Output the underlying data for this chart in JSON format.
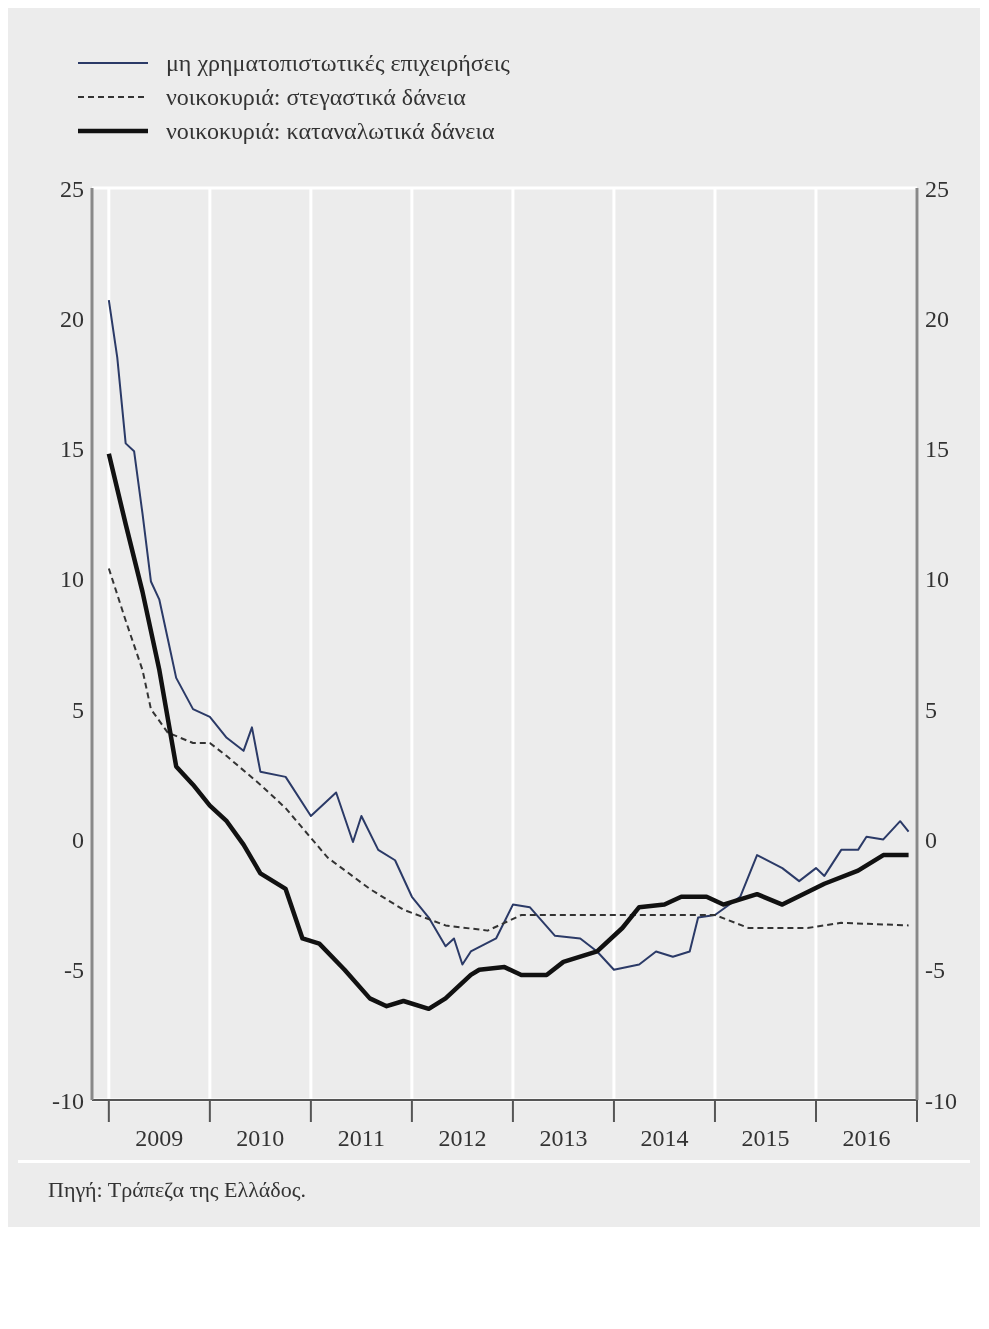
{
  "chart_data": {
    "type": "line",
    "legend": "top left",
    "grid": true,
    "series": [
      {
        "name": "μη χρηματοπιστωτικές επιχειρήσεις",
        "color": "#2b3a67",
        "line_style": "solid",
        "x": [
          "2009-01",
          "2009-02",
          "2009-03",
          "2009-04",
          "2009-05",
          "2009-06",
          "2009-07",
          "2009-08",
          "2009-09",
          "2009-11",
          "2010-01",
          "2010-03",
          "2010-05",
          "2010-06",
          "2010-07",
          "2010-10",
          "2011-01",
          "2011-04",
          "2011-06",
          "2011-07",
          "2011-09",
          "2011-11",
          "2012-01",
          "2012-03",
          "2012-05",
          "2012-06",
          "2012-07",
          "2012-08",
          "2012-11",
          "2013-01",
          "2013-03",
          "2013-06",
          "2013-09",
          "2013-11",
          "2014-01",
          "2014-04",
          "2014-06",
          "2014-08",
          "2014-10",
          "2014-11",
          "2015-01",
          "2015-04",
          "2015-06",
          "2015-09",
          "2015-11",
          "2016-01",
          "2016-02",
          "2016-04",
          "2016-06",
          "2016-07",
          "2016-09",
          "2016-11",
          "2016-12"
        ],
        "values": [
          20.7,
          18.5,
          15.2,
          14.9,
          12.5,
          9.9,
          9.2,
          7.7,
          6.2,
          5.0,
          4.7,
          3.9,
          3.4,
          4.3,
          2.6,
          2.4,
          0.9,
          1.8,
          -0.1,
          0.9,
          -0.4,
          -0.8,
          -2.2,
          -3.0,
          -4.1,
          -3.8,
          -4.8,
          -4.3,
          -3.8,
          -2.5,
          -2.6,
          -3.7,
          -3.8,
          -4.3,
          -5.0,
          -4.8,
          -4.3,
          -4.5,
          -4.3,
          -3.0,
          -2.9,
          -2.2,
          -0.6,
          -1.1,
          -1.6,
          -1.1,
          -1.4,
          -0.4,
          -0.4,
          0.1,
          0.0,
          0.7,
          0.3
        ]
      },
      {
        "name": "νοικοκυριά: στεγαστικά δάνεια",
        "color": "#333333",
        "line_style": "dashed",
        "x": [
          "2009-01",
          "2009-03",
          "2009-05",
          "2009-06",
          "2009-08",
          "2009-11",
          "2010-01",
          "2010-03",
          "2010-07",
          "2010-10",
          "2011-03",
          "2011-08",
          "2011-12",
          "2012-05",
          "2012-10",
          "2013-02",
          "2013-09",
          "2014-05",
          "2015-01",
          "2015-05",
          "2015-12",
          "2016-04",
          "2016-12"
        ],
        "values": [
          10.4,
          8.4,
          6.5,
          5.0,
          4.1,
          3.7,
          3.7,
          3.2,
          2.1,
          1.2,
          -0.7,
          -1.9,
          -2.7,
          -3.3,
          -3.5,
          -2.9,
          -2.9,
          -2.9,
          -2.9,
          -3.4,
          -3.4,
          -3.2,
          -3.3
        ]
      },
      {
        "name": "νοικοκυριά: καταναλωτικά δάνεια",
        "color": "#111111",
        "line_style": "solid",
        "x": [
          "2009-01",
          "2009-03",
          "2009-05",
          "2009-07",
          "2009-09",
          "2009-11",
          "2010-01",
          "2010-03",
          "2010-05",
          "2010-07",
          "2010-10",
          "2010-12",
          "2011-02",
          "2011-05",
          "2011-08",
          "2011-10",
          "2011-12",
          "2012-03",
          "2012-05",
          "2012-08",
          "2012-09",
          "2012-12",
          "2013-02",
          "2013-05",
          "2013-07",
          "2013-11",
          "2014-02",
          "2014-04",
          "2014-07",
          "2014-09",
          "2014-12",
          "2015-02",
          "2015-06",
          "2015-09",
          "2016-02",
          "2016-06",
          "2016-09",
          "2016-12"
        ],
        "values": [
          14.8,
          12.1,
          9.5,
          6.5,
          2.8,
          2.1,
          1.3,
          0.7,
          -0.2,
          -1.3,
          -1.9,
          -3.8,
          -4.0,
          -5.0,
          -6.1,
          -6.4,
          -6.2,
          -6.5,
          -6.1,
          -5.2,
          -5.0,
          -4.9,
          -5.2,
          -5.2,
          -4.7,
          -4.3,
          -3.4,
          -2.6,
          -2.5,
          -2.2,
          -2.2,
          -2.5,
          -2.1,
          -2.5,
          -1.7,
          -1.2,
          -0.6,
          -0.6
        ]
      }
    ],
    "xlim": [
      "2008-11",
      "2017-01"
    ],
    "xticks": [
      {
        "value": "2009-01",
        "label": null
      },
      {
        "value": "2009-07",
        "label": "2009"
      },
      {
        "value": "2010-01",
        "label": null
      },
      {
        "value": "2010-07",
        "label": "2010"
      },
      {
        "value": "2011-01",
        "label": null
      },
      {
        "value": "2011-07",
        "label": "2011"
      },
      {
        "value": "2012-01",
        "label": null
      },
      {
        "value": "2012-07",
        "label": "2012"
      },
      {
        "value": "2013-01",
        "label": null
      },
      {
        "value": "2013-07",
        "label": "2013"
      },
      {
        "value": "2014-01",
        "label": null
      },
      {
        "value": "2014-07",
        "label": "2014"
      },
      {
        "value": "2015-01",
        "label": null
      },
      {
        "value": "2015-07",
        "label": "2015"
      },
      {
        "value": "2016-01",
        "label": null
      },
      {
        "value": "2016-07",
        "label": "2016"
      },
      {
        "value": "2017-01",
        "label": null
      }
    ],
    "ylim": [
      -10,
      25
    ],
    "yticks": [
      -10,
      -5,
      0,
      5,
      10,
      15,
      20,
      25
    ],
    "y2lim": [
      -10,
      25
    ],
    "y2ticks": [
      -10,
      -5,
      0,
      5,
      10,
      15,
      20,
      25
    ],
    "annotations": [
      "Πηγή: Τράπεζα της Ελλάδος."
    ]
  }
}
